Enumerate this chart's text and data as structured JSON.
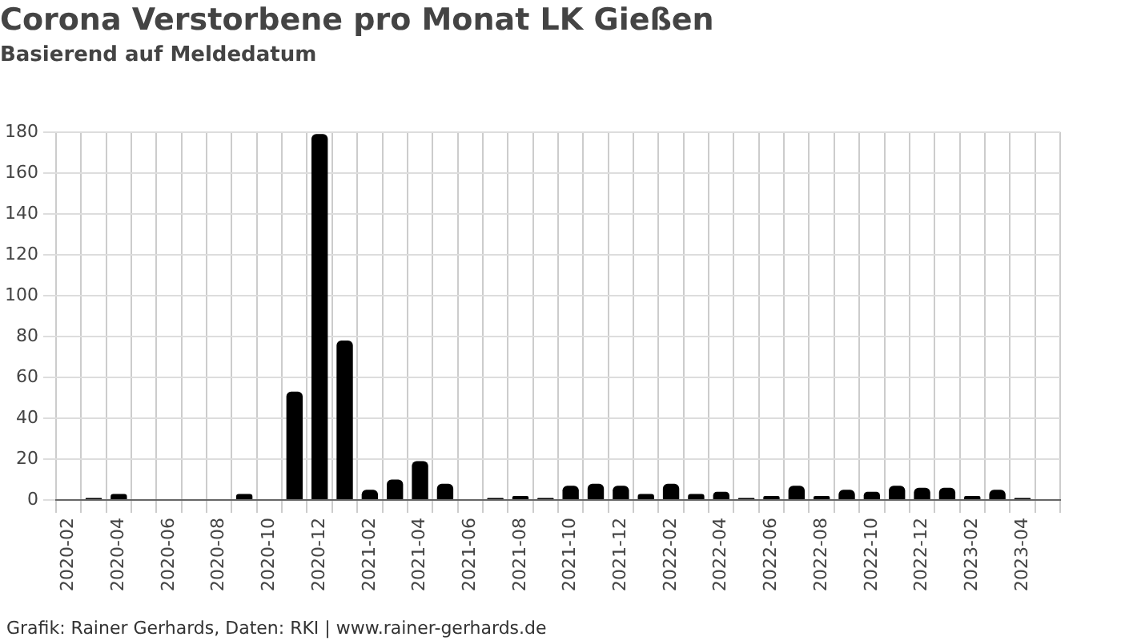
{
  "chart_data": {
    "type": "bar",
    "title": "Corona Verstorbene pro Monat LK Gießen",
    "subtitle": "Basierend auf Meldedatum",
    "categories": [
      "2020-02",
      null,
      "2020-04",
      null,
      "2020-06",
      null,
      "2020-08",
      null,
      "2020-10",
      null,
      "2020-12",
      null,
      "2021-02",
      null,
      "2021-04",
      null,
      "2021-06",
      null,
      "2021-08",
      null,
      "2021-10",
      null,
      "2021-12",
      null,
      "2022-02",
      null,
      "2022-04",
      null,
      "2022-06",
      null,
      "2022-08",
      null,
      "2022-10",
      null,
      "2022-12",
      null,
      "2023-02",
      null,
      "2023-04",
      null
    ],
    "values": [
      0,
      1,
      3,
      0,
      0,
      0,
      0,
      3,
      0,
      53,
      179,
      78,
      5,
      10,
      19,
      8,
      0,
      1,
      2,
      1,
      7,
      8,
      7,
      3,
      8,
      3,
      4,
      1,
      2,
      7,
      2,
      5,
      4,
      7,
      6,
      6,
      2,
      5,
      1,
      0
    ],
    "color": "#000000",
    "ylim": [
      0,
      180
    ],
    "yticks": [
      0,
      20,
      40,
      60,
      80,
      100,
      120,
      140,
      160,
      180
    ],
    "grid": true,
    "annotations": [
      "Grafik: Rainer Gerhards, Daten: RKI | www.rainer-gerhards.de"
    ]
  }
}
